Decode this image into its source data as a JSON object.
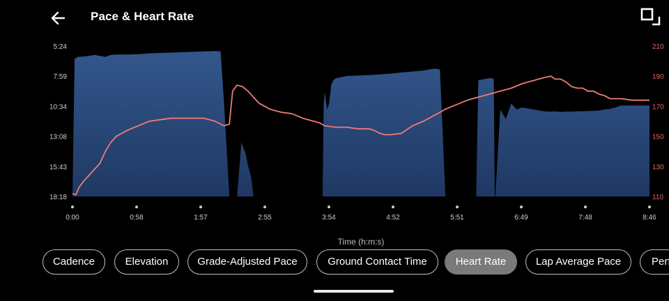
{
  "header": {
    "title": "Pace & Heart Rate",
    "back_icon": "arrow-left-icon",
    "fullscreen_icon": "fullscreen-icon"
  },
  "colors": {
    "pace_fill": "#2d4f82",
    "heart_rate_line": "#f07b78",
    "right_axis_label": "#e06a64",
    "active_chip": "#7a7a7a"
  },
  "chart_data": {
    "type": "area",
    "xlabel": "Time (h:m:s)",
    "x_ticks": [
      "0:00",
      "0:58",
      "1:57",
      "2:55",
      "3:54",
      "4:52",
      "5:51",
      "6:49",
      "7:48",
      "8:46"
    ],
    "y_left_ticks": [
      "5:24",
      "7:59",
      "10:34",
      "13:08",
      "15:43",
      "18:18"
    ],
    "y_right_ticks": [
      "210",
      "190",
      "170",
      "150",
      "130",
      "110"
    ],
    "y_left_range_seconds": [
      324,
      1098
    ],
    "y_right_range": [
      110,
      210
    ],
    "x_range_seconds": [
      0,
      526
    ],
    "series": [
      {
        "kind": "area",
        "axis": "left",
        "x": [
          0,
          2,
          5,
          10,
          15,
          20,
          25,
          30,
          35,
          40,
          50,
          60,
          70,
          80,
          90,
          100,
          110,
          120,
          130,
          135,
          138,
          141,
          143,
          146,
          150,
          154,
          158,
          160,
          163,
          165,
          168,
          170,
          175,
          180,
          185,
          190,
          195,
          200,
          205,
          210,
          215,
          220,
          225,
          228,
          229,
          230,
          232,
          234,
          236,
          238,
          240,
          245,
          250,
          260,
          270,
          280,
          290,
          300,
          310,
          320,
          325,
          330,
          335,
          340,
          345,
          350,
          355,
          360,
          365,
          368,
          370,
          372,
          374,
          376,
          378,
          380,
          382,
          383,
          384,
          385,
          385.5,
          390,
          395,
          400,
          405,
          410,
          415,
          420,
          425,
          430,
          435,
          440,
          445,
          450,
          455,
          460,
          465,
          470,
          475,
          480,
          485,
          490,
          495,
          500,
          505,
          510,
          515,
          520,
          526
        ],
        "y": [
          1098,
          390,
          380,
          378,
          375,
          370,
          375,
          380,
          370,
          368,
          368,
          366,
          362,
          360,
          358,
          356,
          354,
          352,
          350,
          352,
          600,
          900,
          1098,
          1098,
          1098,
          820,
          880,
          940,
          1000,
          1098,
          1098,
          1098,
          1098,
          1098,
          1098,
          1098,
          1098,
          1098,
          1098,
          1098,
          1098,
          1098,
          1098,
          1098,
          620,
          560,
          650,
          620,
          520,
          500,
          490,
          484,
          478,
          476,
          474,
          470,
          466,
          460,
          455,
          450,
          445,
          440,
          445,
          1098,
          1098,
          1098,
          1098,
          1098,
          1098,
          1098,
          500,
          498,
          496,
          494,
          492,
          490,
          490,
          492,
          494,
          1098,
          1098,
          650,
          700,
          620,
          650,
          640,
          645,
          650,
          655,
          660,
          662,
          660,
          663,
          662,
          662,
          660,
          660,
          658,
          658,
          656,
          650,
          648,
          640,
          630,
          630,
          630,
          630,
          630,
          630
        ]
      },
      {
        "kind": "line",
        "axis": "right",
        "x": [
          0,
          3,
          6,
          10,
          15,
          20,
          25,
          30,
          35,
          40,
          45,
          50,
          60,
          70,
          80,
          90,
          100,
          110,
          120,
          130,
          138,
          143,
          146,
          150,
          155,
          160,
          165,
          170,
          175,
          180,
          190,
          200,
          210,
          220,
          225,
          230,
          240,
          250,
          260,
          270,
          275,
          280,
          285,
          290,
          300,
          310,
          320,
          330,
          340,
          350,
          360,
          370,
          380,
          390,
          400,
          410,
          420,
          425,
          430,
          436,
          440,
          445,
          450,
          455,
          460,
          465,
          470,
          475,
          480,
          485,
          490,
          500,
          510,
          520,
          526
        ],
        "y": [
          112,
          111,
          116,
          120,
          124,
          128,
          132,
          140,
          146,
          150,
          152,
          154,
          157,
          160,
          161,
          162,
          162,
          162,
          162,
          160,
          157,
          158,
          180,
          184,
          183,
          180,
          176,
          172,
          170,
          168,
          166,
          165,
          162,
          160,
          159,
          157,
          156,
          156,
          155,
          155,
          154,
          152,
          151,
          151,
          152,
          157,
          160,
          164,
          168,
          171,
          174,
          176,
          178,
          180,
          182,
          185,
          187,
          188,
          189,
          190,
          188,
          188,
          186,
          183,
          182,
          182,
          180,
          180,
          178,
          177,
          175,
          175,
          174,
          174,
          174
        ]
      }
    ]
  },
  "chips": [
    {
      "label": "Cadence",
      "active": false
    },
    {
      "label": "Elevation",
      "active": false
    },
    {
      "label": "Grade-Adjusted Pace",
      "active": false
    },
    {
      "label": "Ground Contact Time",
      "active": false
    },
    {
      "label": "Heart Rate",
      "active": true
    },
    {
      "label": "Lap Average Pace",
      "active": false
    },
    {
      "label": "Perf",
      "active": false
    }
  ]
}
